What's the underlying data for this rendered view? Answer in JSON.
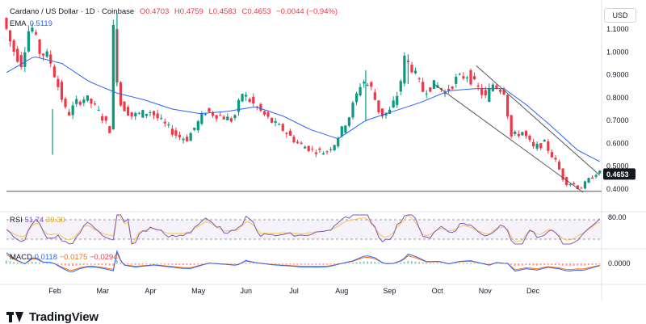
{
  "header": {
    "symbol": "Cardano / US Dollar · 1D · Coinbase",
    "open": "O0.4703",
    "high": "H0.4759",
    "low": "L0.4583",
    "close": "C0.4653",
    "change": "−0.0044 (−0.94%)"
  },
  "ema": {
    "label": "EMA",
    "value": "0.5119"
  },
  "currency_button": "USD",
  "rsi_legend": {
    "label": "RSI",
    "value1": "51.74",
    "value2": "39.30"
  },
  "macd_legend": {
    "label": "MACD",
    "value1": "0.0118",
    "value2": "−0.0175",
    "value3": "−0.0294"
  },
  "brand": "TradingView",
  "colors": {
    "up": "#089981",
    "down": "#f23645",
    "ema": "#2962ff",
    "rsi": "#7e57c2",
    "rsi_ma": "#f7c548",
    "macd": "#2962ff",
    "signal": "#ff6d00"
  },
  "chart_data": {
    "type": "candlestick",
    "months": [
      "Feb",
      "Mar",
      "Apr",
      "May",
      "Jun",
      "Jul",
      "Aug",
      "Sep",
      "Oct",
      "Nov",
      "Dec"
    ],
    "price_ticks": [
      "1.1000",
      "1.0000",
      "0.9000",
      "0.8000",
      "0.7000",
      "0.6000",
      "0.5000",
      "0.4000"
    ],
    "last_price": "0.4653",
    "rsi_tick": "80.00",
    "macd_tick": "0.0000",
    "price_path": [
      [
        0,
        1.15
      ],
      [
        5,
        1.02
      ],
      [
        10,
        0.95
      ],
      [
        15,
        1.13
      ],
      [
        20,
        1.0
      ],
      [
        25,
        0.98
      ],
      [
        30,
        0.85
      ],
      [
        35,
        0.72
      ],
      [
        40,
        0.78
      ],
      [
        45,
        0.8
      ],
      [
        50,
        0.76
      ],
      [
        55,
        0.7
      ],
      [
        58,
        0.66
      ],
      [
        60,
        1.1
      ],
      [
        63,
        0.78
      ],
      [
        70,
        0.72
      ],
      [
        80,
        0.74
      ],
      [
        88,
        0.68
      ],
      [
        95,
        0.63
      ],
      [
        100,
        0.62
      ],
      [
        110,
        0.74
      ],
      [
        118,
        0.72
      ],
      [
        125,
        0.7
      ],
      [
        130,
        0.82
      ],
      [
        136,
        0.77
      ],
      [
        145,
        0.7
      ],
      [
        152,
        0.66
      ],
      [
        160,
        0.6
      ],
      [
        168,
        0.57
      ],
      [
        175,
        0.56
      ],
      [
        180,
        0.6
      ],
      [
        188,
        0.72
      ],
      [
        195,
        0.88
      ],
      [
        200,
        0.84
      ],
      [
        205,
        0.72
      ],
      [
        210,
        0.74
      ],
      [
        215,
        0.83
      ],
      [
        218,
        0.97
      ],
      [
        222,
        0.93
      ],
      [
        228,
        0.83
      ],
      [
        235,
        0.86
      ],
      [
        240,
        0.82
      ],
      [
        246,
        0.88
      ],
      [
        252,
        0.9
      ],
      [
        258,
        0.84
      ],
      [
        262,
        0.8
      ],
      [
        266,
        0.86
      ],
      [
        272,
        0.83
      ],
      [
        276,
        0.63
      ],
      [
        282,
        0.65
      ],
      [
        288,
        0.58
      ],
      [
        294,
        0.6
      ],
      [
        300,
        0.52
      ],
      [
        305,
        0.43
      ],
      [
        310,
        0.42
      ],
      [
        313,
        0.4
      ],
      [
        318,
        0.44
      ],
      [
        322,
        0.47
      ]
    ],
    "ema_path": [
      [
        0,
        0.91
      ],
      [
        15,
        0.98
      ],
      [
        30,
        0.95
      ],
      [
        45,
        0.87
      ],
      [
        60,
        0.82
      ],
      [
        75,
        0.79
      ],
      [
        90,
        0.75
      ],
      [
        105,
        0.73
      ],
      [
        120,
        0.74
      ],
      [
        135,
        0.76
      ],
      [
        150,
        0.72
      ],
      [
        165,
        0.66
      ],
      [
        180,
        0.62
      ],
      [
        195,
        0.7
      ],
      [
        210,
        0.74
      ],
      [
        225,
        0.78
      ],
      [
        240,
        0.83
      ],
      [
        255,
        0.84
      ],
      [
        270,
        0.84
      ],
      [
        282,
        0.77
      ],
      [
        295,
        0.68
      ],
      [
        310,
        0.57
      ],
      [
        322,
        0.52
      ]
    ],
    "support_level": 0.39,
    "channel_lines": [
      {
        "from": [
          232,
          0.86
        ],
        "to": [
          313,
          0.385
        ]
      },
      {
        "from": [
          255,
          0.94
        ],
        "to": [
          322,
          0.46
        ]
      }
    ]
  }
}
